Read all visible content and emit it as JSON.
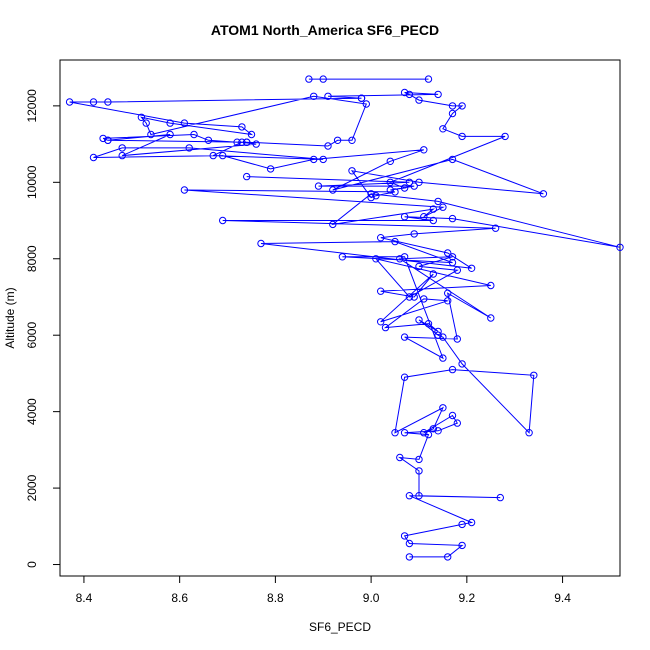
{
  "chart_data": {
    "type": "line",
    "title": "ATOM1 North_America SF6_PECD",
    "xlabel": "SF6_PECD",
    "ylabel": "Altitude (m)",
    "xlim": [
      8.35,
      9.52
    ],
    "ylim": [
      -300,
      13200
    ],
    "xticks": [
      8.4,
      8.6,
      8.8,
      9.0,
      9.2,
      9.4
    ],
    "xtick_labels": [
      "8.4",
      "8.6",
      "8.8",
      "9.0",
      "9.2",
      "9.4"
    ],
    "yticks": [
      0,
      2000,
      4000,
      6000,
      8000,
      10000,
      12000
    ],
    "ytick_labels": [
      "0",
      "2000",
      "4000",
      "6000",
      "8000",
      "10000",
      "12000"
    ],
    "grid": false,
    "series": [
      {
        "color": "#0000ff",
        "x": [
          9.08,
          9.16,
          9.19,
          9.08,
          9.07,
          9.19,
          9.21,
          9.08,
          9.27,
          9.1,
          9.1,
          9.06,
          9.1,
          9.12,
          9.07,
          9.14,
          9.18,
          9.17,
          9.11,
          9.13,
          9.15,
          9.05,
          9.07,
          9.17,
          9.34,
          9.33,
          9.19,
          9.15,
          9.14,
          9.1,
          9.14,
          9.12,
          9.03,
          9.11,
          9.16,
          9.02,
          9.13,
          9.09,
          9.02,
          9.25,
          9.01,
          9.08,
          9.18,
          9.1,
          9.17,
          9.06,
          9.25,
          9.16,
          9.18,
          9.07,
          9.15,
          9.07,
          8.94,
          9.17,
          9.05,
          8.77,
          9.21,
          9.16,
          9.02,
          9.09,
          9.26,
          8.69,
          9.13,
          9.07,
          9.17,
          9.52,
          9.14,
          9.0,
          8.92,
          9.13,
          9.11,
          9.15,
          8.61,
          9.05,
          9.01,
          9.0,
          8.96,
          9.1,
          9.36,
          9.17,
          8.92,
          9.04,
          9.11,
          8.88,
          8.79,
          8.69,
          8.42,
          8.48,
          8.62,
          8.9,
          8.67,
          8.73,
          8.76,
          8.48,
          8.58,
          8.45,
          8.74,
          8.45,
          8.44,
          8.63,
          8.66,
          8.72,
          8.74,
          8.91,
          8.93,
          8.96,
          8.99,
          8.88,
          8.54,
          8.53,
          8.52,
          8.58,
          8.75,
          8.73,
          8.61,
          8.37,
          8.42,
          8.45,
          8.98,
          8.98,
          8.91,
          9.14,
          9.07,
          9.08,
          9.1,
          9.17,
          9.19,
          9.17,
          9.15,
          9.19,
          9.28,
          9.04,
          9.07,
          9.04,
          9.09,
          8.89,
          9.08,
          8.74
        ],
        "y": [
          200,
          200,
          500,
          550,
          750,
          1050,
          1100,
          1800,
          1750,
          1800,
          2450,
          2800,
          2750,
          3400,
          3450,
          3500,
          3700,
          3900,
          3450,
          3550,
          4100,
          3450,
          4900,
          5100,
          4950,
          3450,
          5250,
          5950,
          6000,
          6400,
          6100,
          6300,
          6200,
          6950,
          6900,
          6350,
          7600,
          7000,
          7150,
          7300,
          8000,
          7000,
          7700,
          7800,
          8050,
          8000,
          6450,
          7100,
          5900,
          5950,
          5400,
          8050,
          8050,
          7900,
          8450,
          8400,
          7750,
          8150,
          8550,
          8650,
          8800,
          9000,
          9000,
          9100,
          9050,
          8300,
          9500,
          9700,
          8900,
          9300,
          9100,
          9350,
          9800,
          9750,
          9650,
          9600,
          10300,
          10000,
          9700,
          10600,
          9800,
          10550,
          10850,
          10600,
          10350,
          10700,
          10650,
          10900,
          10900,
          10600,
          10700,
          11050,
          11000,
          10700,
          11250,
          11100,
          11050,
          11100,
          11150,
          11250,
          11100,
          11050,
          11050,
          10950,
          11100,
          11100,
          12050,
          12250,
          11250,
          11550,
          11700,
          11550,
          11250,
          11450,
          11550,
          12100,
          12100,
          12100,
          12200,
          12200,
          12250,
          12300,
          12350,
          12300,
          12150,
          12000,
          12000,
          11800,
          11400,
          11200,
          11200,
          10000,
          9850,
          9800,
          9900,
          9900,
          10000,
          10150
        ]
      },
      {
        "color": "#0000ff",
        "x": [
          8.87,
          8.9,
          9.12
        ],
        "y": [
          12700,
          12700,
          12700
        ]
      }
    ]
  }
}
